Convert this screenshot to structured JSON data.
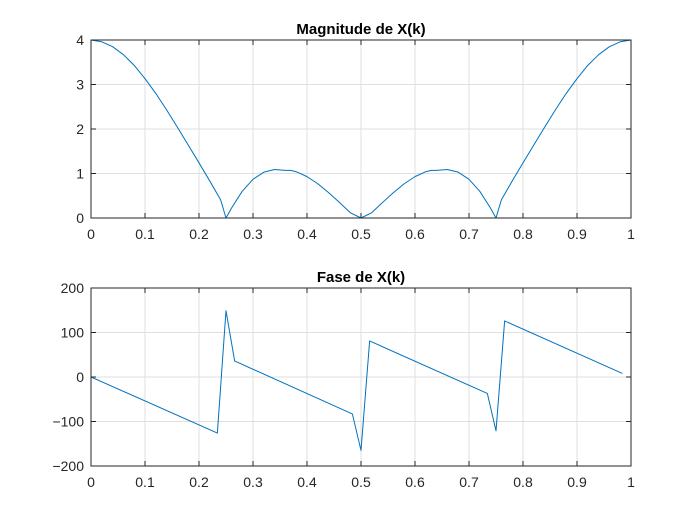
{
  "chart_data": [
    {
      "type": "line",
      "title": "Magnitude de X(k)",
      "xlabel": "",
      "ylabel": "",
      "xlim": [
        0,
        1
      ],
      "ylim": [
        0,
        4
      ],
      "xticks": [
        0,
        0.1,
        0.2,
        0.3,
        0.4,
        0.5,
        0.6,
        0.7,
        0.8,
        0.9,
        1
      ],
      "xtick_labels": [
        "0",
        "0.1",
        "0.2",
        "0.3",
        "0.4",
        "0.5",
        "0.6",
        "0.7",
        "0.8",
        "0.9",
        "1"
      ],
      "yticks": [
        0,
        1,
        2,
        3,
        4
      ],
      "ytick_labels": [
        "0",
        "1",
        "2",
        "3",
        "4"
      ],
      "grid": true,
      "color": "#0072bd",
      "x": [
        0,
        0.02,
        0.04,
        0.06,
        0.08,
        0.1,
        0.12,
        0.14,
        0.16,
        0.18,
        0.2,
        0.22,
        0.24,
        0.25,
        0.26,
        0.28,
        0.3,
        0.32,
        0.34,
        0.36,
        0.37,
        0.38,
        0.4,
        0.42,
        0.44,
        0.46,
        0.48,
        0.5,
        0.52,
        0.54,
        0.56,
        0.58,
        0.6,
        0.62,
        0.63,
        0.64,
        0.66,
        0.68,
        0.7,
        0.72,
        0.74,
        0.75,
        0.76,
        0.78,
        0.8,
        0.82,
        0.84,
        0.86,
        0.88,
        0.9,
        0.92,
        0.94,
        0.96,
        0.98,
        1
      ],
      "y": [
        4,
        3.96,
        3.85,
        3.67,
        3.43,
        3.13,
        2.8,
        2.43,
        2.04,
        1.64,
        1.24,
        0.83,
        0.41,
        0,
        0.22,
        0.6,
        0.87,
        1.03,
        1.09,
        1.07,
        1.07,
        1.04,
        0.93,
        0.77,
        0.57,
        0.35,
        0.12,
        0,
        0.12,
        0.35,
        0.57,
        0.77,
        0.93,
        1.04,
        1.07,
        1.07,
        1.09,
        1.03,
        0.87,
        0.6,
        0.22,
        0,
        0.41,
        0.83,
        1.24,
        1.64,
        2.04,
        2.43,
        2.8,
        3.13,
        3.43,
        3.67,
        3.85,
        3.96,
        4
      ]
    },
    {
      "type": "line",
      "title": "Fase de X(k)",
      "xlabel": "",
      "ylabel": "",
      "xlim": [
        0,
        1
      ],
      "ylim": [
        -200,
        200
      ],
      "xticks": [
        0,
        0.1,
        0.2,
        0.3,
        0.4,
        0.5,
        0.6,
        0.7,
        0.8,
        0.9,
        1
      ],
      "xtick_labels": [
        "0",
        "0.1",
        "0.2",
        "0.3",
        "0.4",
        "0.5",
        "0.6",
        "0.7",
        "0.8",
        "0.9",
        "1"
      ],
      "yticks": [
        -200,
        -100,
        0,
        100,
        200
      ],
      "ytick_labels": [
        "−200",
        "−100",
        "0",
        "100",
        "200"
      ],
      "grid": true,
      "color": "#0072bd",
      "x": [
        0,
        0.234,
        0.25,
        0.266,
        0.484,
        0.5,
        0.516,
        0.734,
        0.75,
        0.766,
        0.984
      ],
      "y": [
        0,
        -126,
        149,
        36,
        -83,
        -165,
        81,
        -37,
        -121,
        126,
        8
      ]
    }
  ]
}
